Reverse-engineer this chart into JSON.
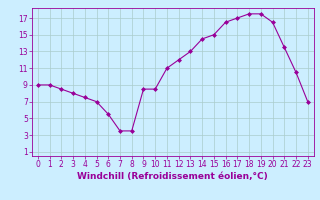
{
  "hours": [
    0,
    1,
    2,
    3,
    4,
    5,
    6,
    7,
    8,
    9,
    10,
    11,
    12,
    13,
    14,
    15,
    16,
    17,
    18,
    19,
    20,
    21,
    22,
    23
  ],
  "values": [
    9,
    9,
    8.5,
    8,
    7.5,
    7,
    5.5,
    3.5,
    3.5,
    8.5,
    8.5,
    11,
    12,
    13,
    14.5,
    15,
    16.5,
    17,
    17.5,
    17.5,
    16.5,
    13.5,
    10.5,
    7
  ],
  "line_color": "#990099",
  "marker": "D",
  "marker_size": 2.0,
  "bg_color": "#cceeff",
  "grid_color": "#aacccc",
  "xlabel": "Windchill (Refroidissement éolien,°C)",
  "xlim": [
    -0.5,
    23.5
  ],
  "ylim": [
    0.5,
    18.2
  ],
  "yticks": [
    1,
    3,
    5,
    7,
    9,
    11,
    13,
    15,
    17
  ],
  "xticks": [
    0,
    1,
    2,
    3,
    4,
    5,
    6,
    7,
    8,
    9,
    10,
    11,
    12,
    13,
    14,
    15,
    16,
    17,
    18,
    19,
    20,
    21,
    22,
    23
  ],
  "tick_color": "#990099",
  "label_fontsize": 6.5,
  "tick_fontsize": 5.5
}
